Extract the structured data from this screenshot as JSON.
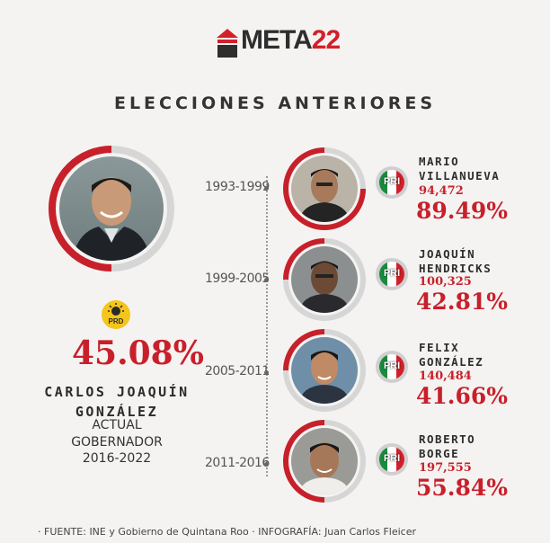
{
  "logo": {
    "text_main": "META",
    "text_num": "22"
  },
  "section_title": "ELECCIONES ANTERIORES",
  "current": {
    "party": "PRD",
    "percent": "45.08%",
    "name_line1": "CARLOS JOAQUÍN",
    "name_line2": "GONZÁLEZ",
    "role_line1": "ACTUAL",
    "role_line2": "GOBERNADOR",
    "term": "2016-2022"
  },
  "previous": [
    {
      "period": "1993-1999",
      "name_line1": "MARIO",
      "name_line2": "VILLANUEVA",
      "votes": "94,472",
      "percent": "89.49%",
      "party": "PRI"
    },
    {
      "period": "1999-2005",
      "name_line1": "JOAQUÍN",
      "name_line2": "HENDRICKS",
      "votes": "100,325",
      "percent": "42.81%",
      "party": "PRI"
    },
    {
      "period": "2005-2011",
      "name_line1": "FELIX",
      "name_line2": "GONZÁLEZ",
      "votes": "140,484",
      "percent": "41.66%",
      "party": "PRI"
    },
    {
      "period": "2011-2016",
      "name_line1": "ROBERTO",
      "name_line2": "BORGE",
      "votes": "197,555",
      "percent": "55.84%",
      "party": "PRI"
    }
  ],
  "footer": {
    "source_label": "FUENTE:",
    "source_text": "INE y Gobierno de Quintana Roo",
    "credit_label": "INFOGRAFÍA:",
    "credit_text": "Juan Carlos Fleicer"
  },
  "colors": {
    "accent": "#c8202b",
    "ring_gray": "#d6d6d6",
    "background": "#f4f3f1"
  }
}
